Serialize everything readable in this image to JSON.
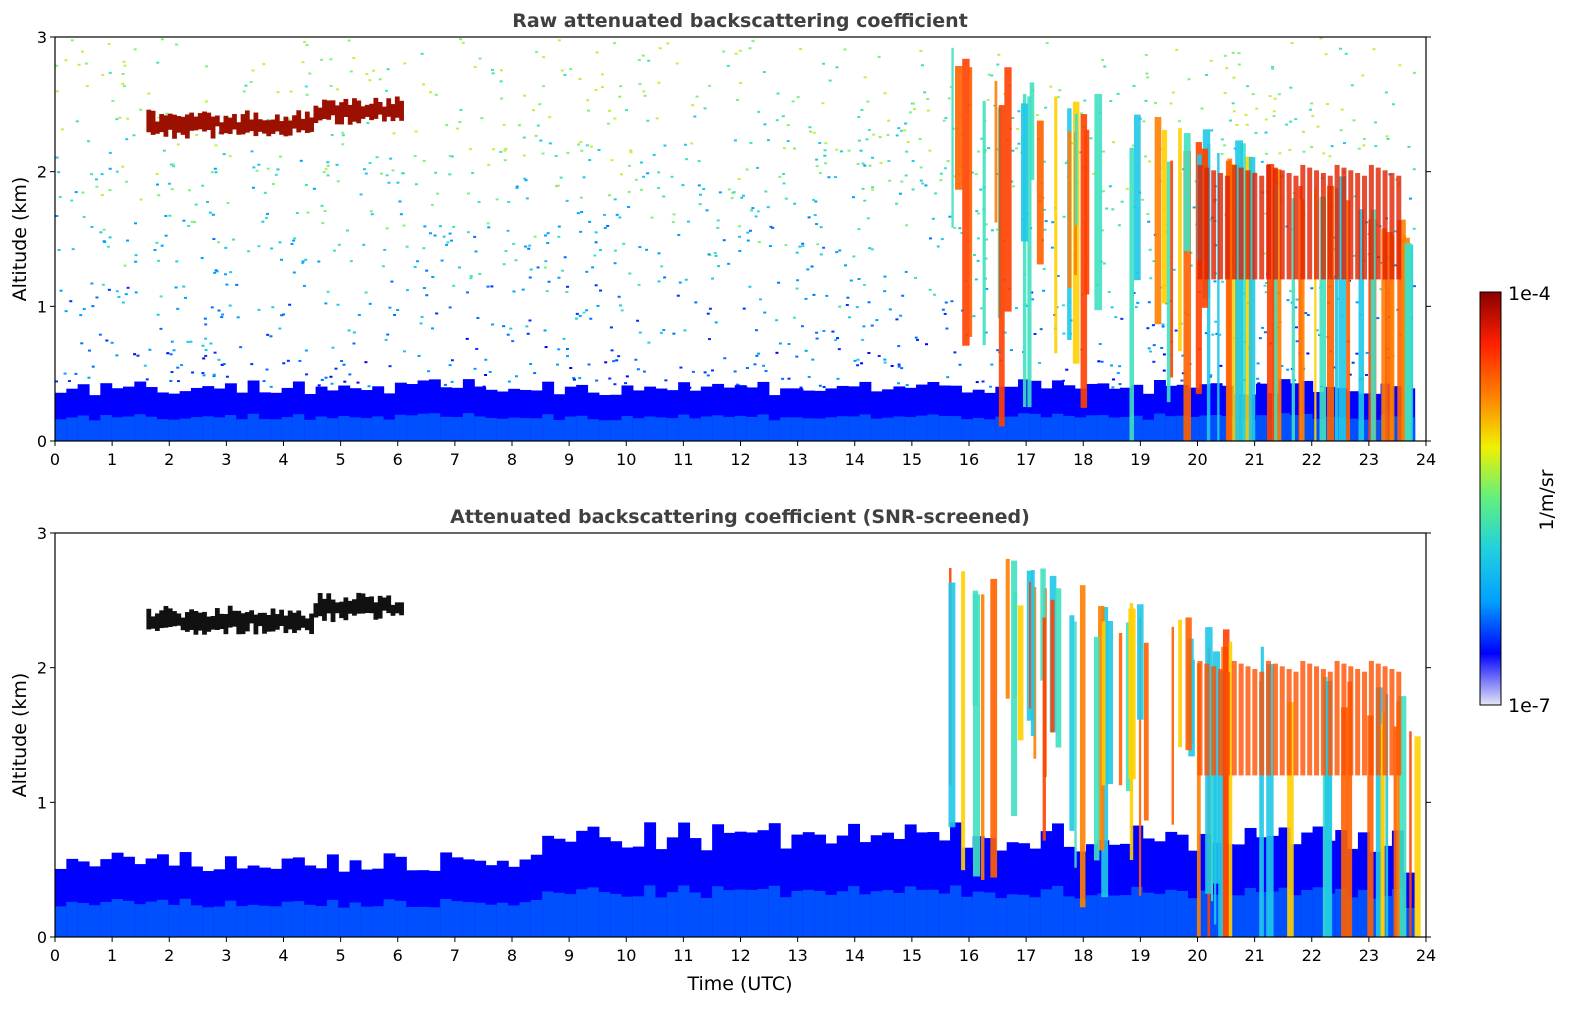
{
  "chart_data": [
    {
      "type": "heatmap",
      "title": "Raw attenuated backscattering coefficient",
      "xlabel": "",
      "ylabel": "Altitude (km)",
      "xlim": [
        0,
        24
      ],
      "ylim": [
        0,
        3
      ],
      "xticks": [
        "0",
        "1",
        "2",
        "3",
        "4",
        "5",
        "6",
        "7",
        "8",
        "9",
        "10",
        "11",
        "12",
        "13",
        "14",
        "15",
        "16",
        "17",
        "18",
        "19",
        "20",
        "21",
        "22",
        "23",
        "24"
      ],
      "yticks": [
        "0",
        "1",
        "2",
        "3"
      ],
      "features": [
        {
          "kind": "boundary_layer",
          "x_start": 0,
          "x_end": 23.8,
          "top_km": 0.4
        },
        {
          "kind": "cloud_layer",
          "x_start": 1.6,
          "x_end": 6.1,
          "altitude_km": 2.35
        },
        {
          "kind": "precipitation_streaks",
          "x_start": 15.5,
          "x_end": 23.8
        }
      ]
    },
    {
      "type": "heatmap",
      "title": "Attenuated backscattering coefficient (SNR-screened)",
      "xlabel": "Time (UTC)",
      "ylabel": "Altitude (km)",
      "xlim": [
        0,
        24
      ],
      "ylim": [
        0,
        3
      ],
      "xticks": [
        "0",
        "1",
        "2",
        "3",
        "4",
        "5",
        "6",
        "7",
        "8",
        "9",
        "10",
        "11",
        "12",
        "13",
        "14",
        "15",
        "16",
        "17",
        "18",
        "19",
        "20",
        "21",
        "22",
        "23",
        "24"
      ],
      "yticks": [
        "0",
        "1",
        "2",
        "3"
      ],
      "features": [
        {
          "kind": "boundary_layer",
          "x_start": 0,
          "x_end": 23.8,
          "top_km": 0.55
        },
        {
          "kind": "cloud_layer",
          "x_start": 1.6,
          "x_end": 6.1,
          "altitude_km": 2.35
        },
        {
          "kind": "precipitation_streaks",
          "x_start": 15.5,
          "x_end": 23.8
        }
      ]
    }
  ],
  "colorbar": {
    "label": "1/m/sr",
    "max_label": "1e-4",
    "min_label": "1e-7",
    "scale": "log",
    "range": [
      1e-07,
      0.0001
    ],
    "colors": [
      "#e6e6f5",
      "#0000ff",
      "#00a0ff",
      "#20d0e0",
      "#60f080",
      "#f0f000",
      "#ff8000",
      "#ff2000",
      "#8b0000"
    ]
  }
}
